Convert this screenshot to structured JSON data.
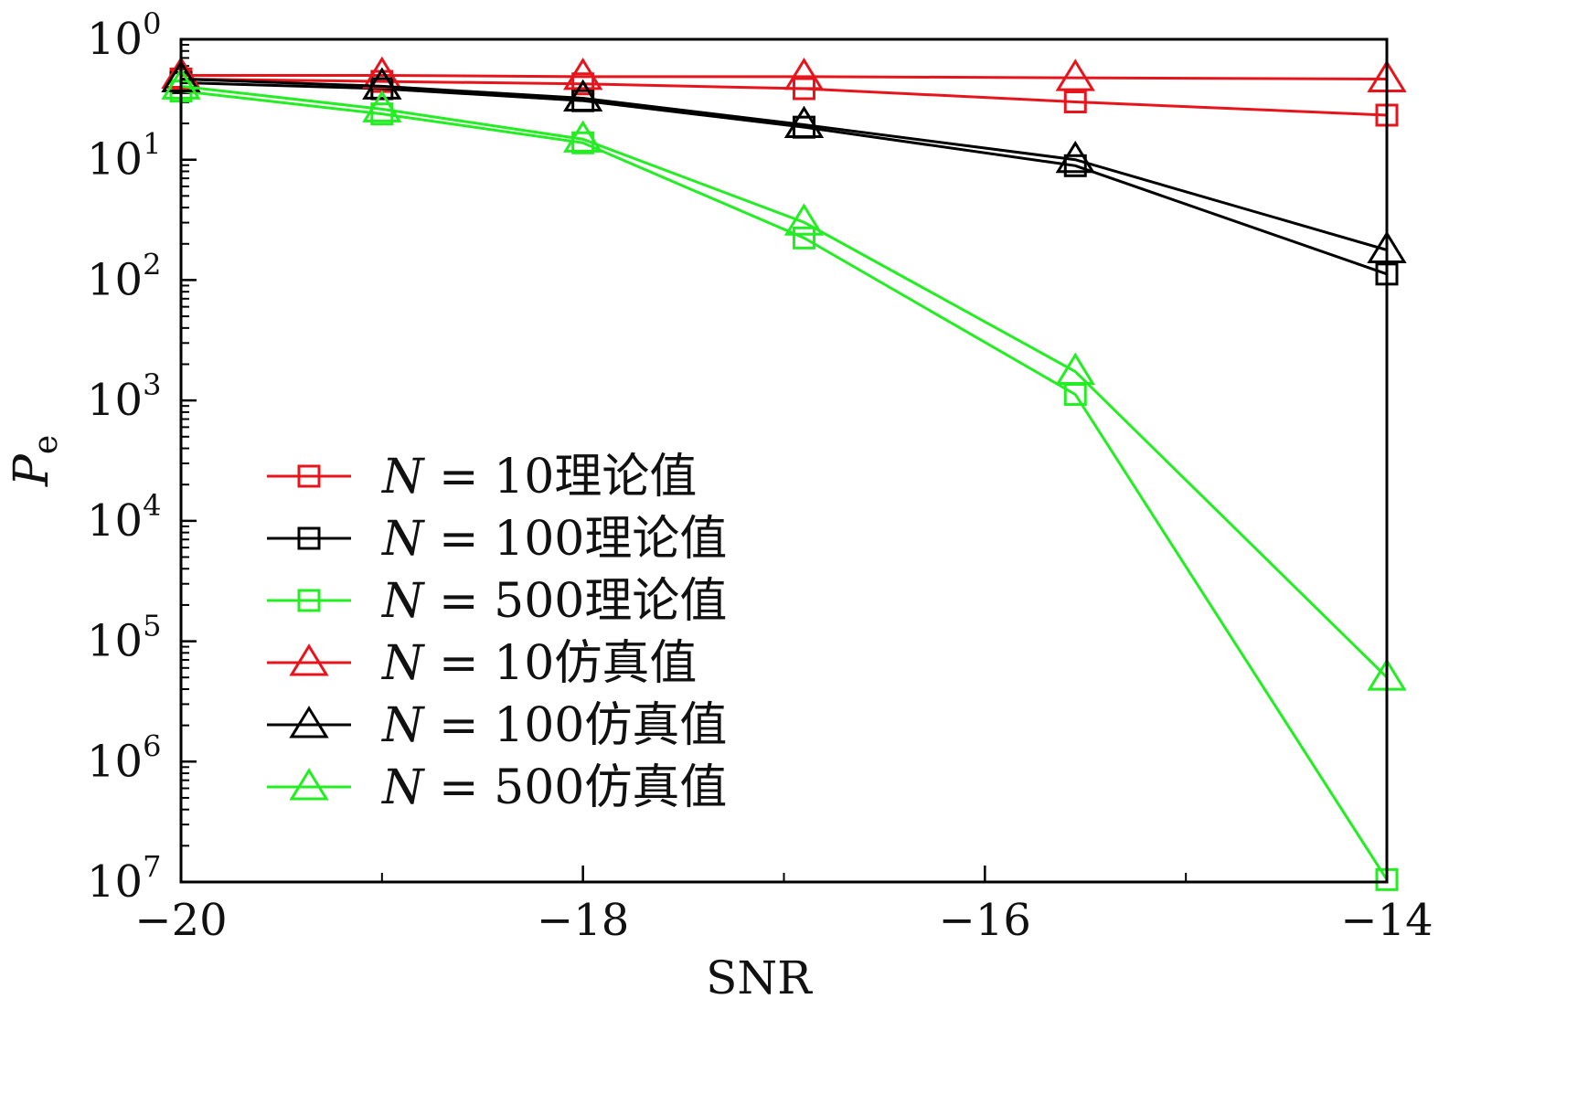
{
  "chart_data": {
    "type": "line",
    "xlabel": "SNR",
    "ylabel": "P",
    "ylabel_sub": "e",
    "xlim": [
      -20,
      -14
    ],
    "ylim_exp": [
      0,
      7
    ],
    "y_scale": "log",
    "grid": false,
    "legend_position": "center-left",
    "x_ticks": [
      {
        "value": -20,
        "label": "−20"
      },
      {
        "value": -18,
        "label": "−18"
      },
      {
        "value": -16,
        "label": "−16"
      },
      {
        "value": -14,
        "label": "−14"
      }
    ],
    "y_ticks": [
      {
        "exp": 0,
        "base": "10",
        "sup": "0"
      },
      {
        "exp": 1,
        "base": "10",
        "sup": "1"
      },
      {
        "exp": 2,
        "base": "10",
        "sup": "2"
      },
      {
        "exp": 3,
        "base": "10",
        "sup": "3"
      },
      {
        "exp": 4,
        "base": "10",
        "sup": "4"
      },
      {
        "exp": 5,
        "base": "10",
        "sup": "5"
      },
      {
        "exp": 6,
        "base": "10",
        "sup": "6"
      },
      {
        "exp": 7,
        "base": "10",
        "sup": "7"
      }
    ],
    "series": [
      {
        "name": "N = 10理论值",
        "n_label": "10",
        "suffix": "理论值",
        "color": "#e8141c",
        "marker": "square",
        "points": [
          [
            -20,
            0.33
          ],
          [
            -19,
            0.35
          ],
          [
            -18,
            0.37
          ],
          [
            -16.9,
            0.41
          ],
          [
            -15.55,
            0.52
          ],
          [
            -14,
            0.63
          ]
        ]
      },
      {
        "name": "N = 100理论值",
        "n_label": "100",
        "suffix": "理论值",
        "color": "#000000",
        "marker": "square",
        "points": [
          [
            -20,
            0.36
          ],
          [
            -19,
            0.41
          ],
          [
            -18,
            0.51
          ],
          [
            -16.9,
            0.73
          ],
          [
            -15.55,
            1.05
          ],
          [
            -14,
            1.95
          ]
        ]
      },
      {
        "name": "N = 500理论值",
        "n_label": "500",
        "suffix": "理论值",
        "color": "#22ee22",
        "marker": "square",
        "points": [
          [
            -20,
            0.43
          ],
          [
            -19,
            0.62
          ],
          [
            -18,
            0.86
          ],
          [
            -16.9,
            1.65
          ],
          [
            -15.55,
            2.95
          ],
          [
            -14,
            6.98
          ]
        ]
      },
      {
        "name": "N = 10仿真值",
        "n_label": "10",
        "suffix": "仿真值",
        "color": "#e8141c",
        "marker": "triangle",
        "points": [
          [
            -20,
            0.3
          ],
          [
            -19,
            0.3
          ],
          [
            -18,
            0.31
          ],
          [
            -16.9,
            0.31
          ],
          [
            -15.55,
            0.32
          ],
          [
            -14,
            0.33
          ]
        ]
      },
      {
        "name": "N = 100仿真值",
        "n_label": "100",
        "suffix": "仿真值",
        "color": "#000000",
        "marker": "triangle",
        "points": [
          [
            -20,
            0.33
          ],
          [
            -19,
            0.39
          ],
          [
            -18,
            0.49
          ],
          [
            -16.9,
            0.71
          ],
          [
            -15.55,
            1.0
          ],
          [
            -14,
            1.75
          ]
        ]
      },
      {
        "name": "N = 500仿真值",
        "n_label": "500",
        "suffix": "仿真值",
        "color": "#22ee22",
        "marker": "triangle",
        "points": [
          [
            -20,
            0.39
          ],
          [
            -19,
            0.58
          ],
          [
            -18,
            0.83
          ],
          [
            -16.9,
            1.52
          ],
          [
            -15.55,
            2.76
          ],
          [
            -14,
            5.3
          ]
        ]
      }
    ]
  }
}
